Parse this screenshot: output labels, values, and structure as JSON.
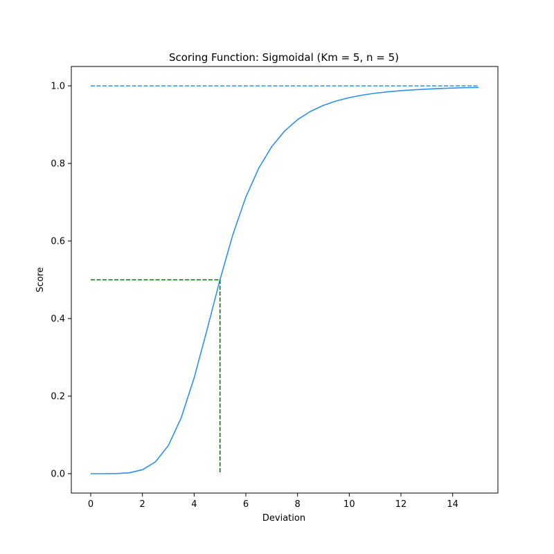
{
  "chart_data": {
    "type": "line",
    "title": "Scoring Function: Sigmoidal (Km = 5, n = 5)",
    "xlabel": "Deviation",
    "ylabel": "Score",
    "xlim": [
      -0.75,
      15.75
    ],
    "ylim": [
      -0.05,
      1.05
    ],
    "xticks": [
      0,
      2,
      4,
      6,
      8,
      10,
      12,
      14
    ],
    "yticks": [
      0.0,
      0.2,
      0.4,
      0.6,
      0.8,
      1.0
    ],
    "xtick_labels": [
      "0",
      "2",
      "4",
      "6",
      "8",
      "10",
      "12",
      "14"
    ],
    "ytick_labels": [
      "0.0",
      "0.2",
      "0.4",
      "0.6",
      "0.8",
      "1.0"
    ],
    "grid": false,
    "series": [
      {
        "color": "#2b8fef",
        "style": "solid",
        "x": [
          0,
          0.5,
          1,
          1.5,
          2,
          2.5,
          3,
          3.5,
          4,
          4.5,
          5,
          5.5,
          6,
          6.5,
          7,
          7.5,
          8,
          8.5,
          9,
          9.5,
          10,
          10.5,
          11,
          11.5,
          12,
          12.5,
          13,
          13.5,
          14,
          14.5,
          15
        ],
        "y": [
          0,
          1e-05,
          0.0003,
          0.0024,
          0.0101,
          0.0303,
          0.0721,
          0.1441,
          0.2468,
          0.3713,
          0.5,
          0.617,
          0.7133,
          0.7878,
          0.8432,
          0.8836,
          0.9129,
          0.9342,
          0.9497,
          0.9612,
          0.9697,
          0.9761,
          0.981,
          0.9847,
          0.9876,
          0.9899,
          0.9917,
          0.9932,
          0.9944,
          0.9953,
          0.9959
        ]
      },
      {
        "color": "#2b8fef",
        "style": "dashed",
        "x": [
          0,
          15
        ],
        "y": [
          1.0,
          1.0
        ]
      },
      {
        "color": "#008000",
        "style": "dashed",
        "x": [
          0,
          5
        ],
        "y": [
          0.5,
          0.5
        ]
      },
      {
        "color": "#008000",
        "style": "dashed",
        "x": [
          5,
          5
        ],
        "y": [
          0.5,
          0.0
        ]
      }
    ]
  }
}
